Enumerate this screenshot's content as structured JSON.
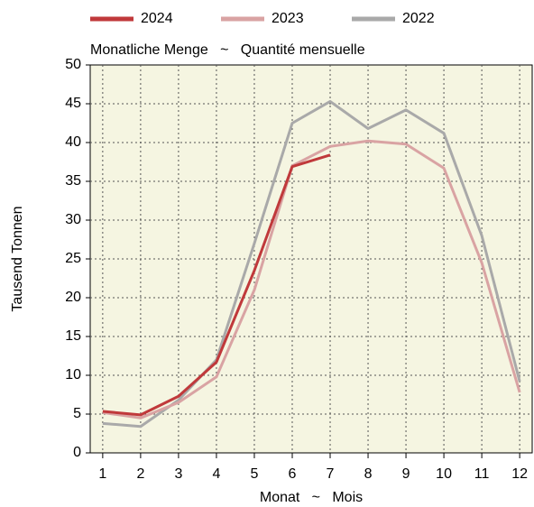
{
  "chart_data": {
    "type": "line",
    "title": "Monatliche Menge   ~   Quantité mensuelle",
    "x_label": "Monat   ~   Mois",
    "y_label": "Tausend Tonnen",
    "x": [
      1,
      2,
      3,
      4,
      5,
      6,
      7,
      8,
      9,
      10,
      11,
      12
    ],
    "series": [
      {
        "name": "2024",
        "color": "#c0393b",
        "values": [
          5.35,
          4.9,
          7.3,
          11.7,
          23.5,
          36.9,
          38.4,
          null,
          null,
          null,
          null,
          null
        ]
      },
      {
        "name": "2023",
        "color": "#d9a3a3",
        "values": [
          5.2,
          4.5,
          6.5,
          9.8,
          21,
          37,
          39.5,
          40.2,
          39.8,
          36.7,
          24.5,
          7.8
        ]
      },
      {
        "name": "2022",
        "color": "#a9a9a9",
        "values": [
          3.8,
          3.4,
          6.8,
          12,
          27,
          42.5,
          45.3,
          41.8,
          44.2,
          41.2,
          28,
          9.2
        ]
      }
    ],
    "xlim": [
      0.67,
      12.33
    ],
    "xticks": [
      1,
      2,
      3,
      4,
      5,
      6,
      7,
      8,
      9,
      10,
      11,
      12
    ],
    "ylim": [
      0,
      50
    ],
    "yticks": [
      0,
      5,
      10,
      15,
      20,
      25,
      30,
      35,
      40,
      45,
      50
    ],
    "grid": true,
    "legend": "top"
  }
}
